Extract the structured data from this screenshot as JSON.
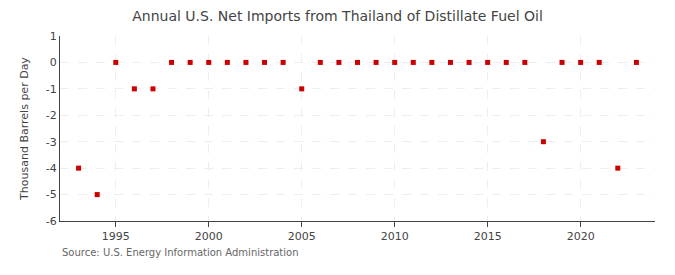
{
  "chart_data": {
    "type": "scatter",
    "title": "Annual U.S. Net Imports from Thailand of Distillate Fuel Oil",
    "ylabel": "Thousand Barrels per Day",
    "annotations": [
      "Source: U.S. Energy Information Administration"
    ],
    "x": [
      1993,
      1994,
      1995,
      1996,
      1997,
      1998,
      1999,
      2000,
      2001,
      2002,
      2003,
      2004,
      2005,
      2006,
      2007,
      2008,
      2009,
      2010,
      2011,
      2012,
      2013,
      2014,
      2015,
      2016,
      2017,
      2018,
      2019,
      2020,
      2021,
      2022,
      2023
    ],
    "values": [
      -4,
      -5,
      0,
      -1,
      -1,
      0,
      0,
      0,
      0,
      0,
      0,
      0,
      -1,
      0,
      0,
      0,
      0,
      0,
      0,
      0,
      0,
      0,
      0,
      0,
      0,
      -3,
      0,
      0,
      0,
      -4,
      0
    ],
    "color": "#cc0000",
    "marker": "square",
    "xlim": [
      1992,
      2024
    ],
    "xticks": [
      1995,
      2000,
      2005,
      2010,
      2015,
      2020
    ],
    "ylim": [
      -6,
      1
    ],
    "yticks": [
      1,
      0,
      -1,
      -2,
      -3,
      -4,
      -5,
      -6
    ],
    "grid": true
  }
}
